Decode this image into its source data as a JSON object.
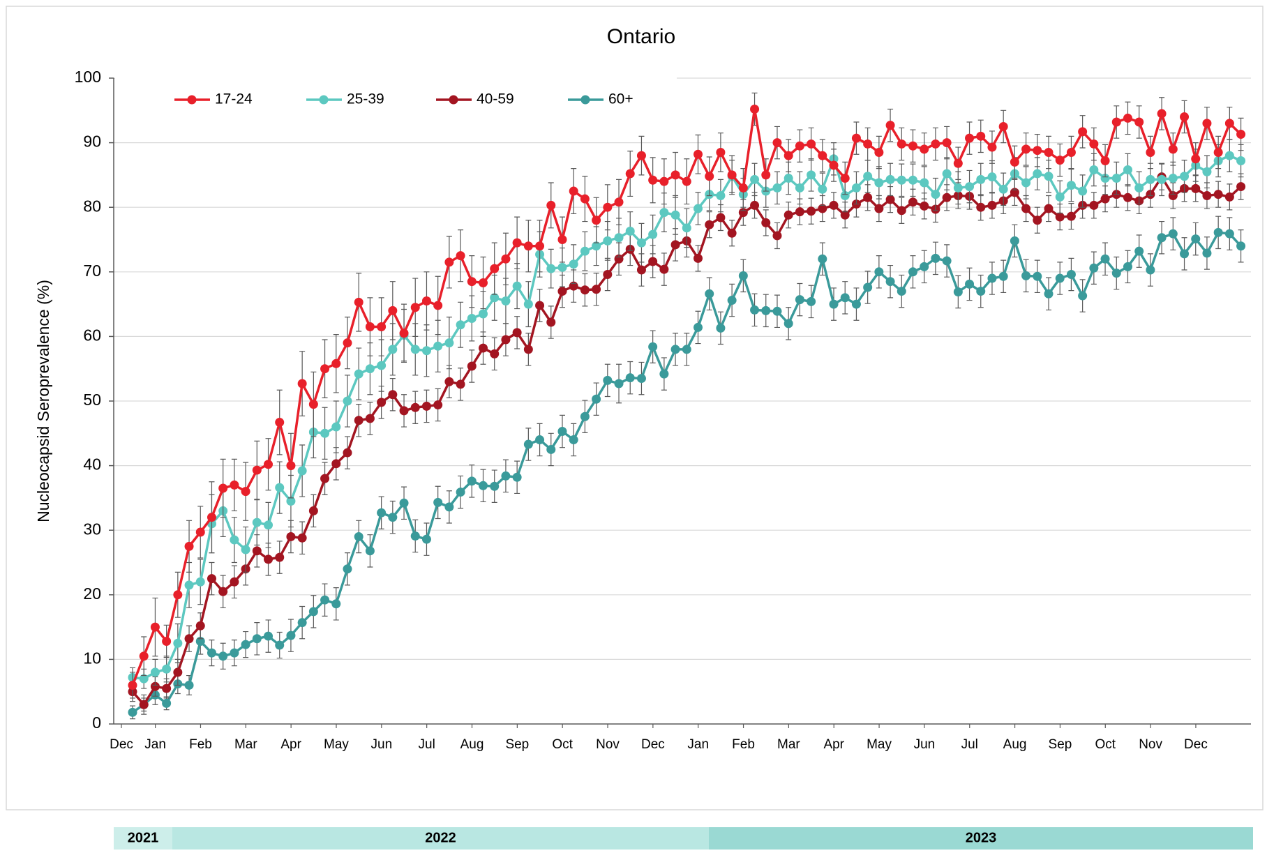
{
  "chart_data": {
    "type": "line",
    "title": "Ontario",
    "ylabel": "Nucleocapsid Seroprevalence (%)",
    "ylim": [
      0,
      100
    ],
    "yticks": [
      0,
      10,
      20,
      30,
      40,
      50,
      60,
      70,
      80,
      90,
      100
    ],
    "grid": true,
    "legend": "top-left",
    "year_bands": [
      "2021",
      "2022",
      "2023"
    ],
    "categories": [
      "Dec",
      null,
      null,
      "Jan",
      null,
      null,
      null,
      "Feb",
      null,
      null,
      null,
      "Mar",
      null,
      null,
      null,
      "Apr",
      null,
      null,
      null,
      "May",
      null,
      null,
      null,
      "Jun",
      null,
      null,
      null,
      "Jul",
      null,
      null,
      null,
      "Aug",
      null,
      null,
      null,
      "Sep",
      null,
      null,
      null,
      "Oct",
      null,
      null,
      null,
      "Nov",
      null,
      null,
      null,
      "Dec",
      null,
      null,
      null,
      "Jan",
      null,
      null,
      null,
      "Feb",
      null,
      null,
      null,
      "Mar",
      null,
      null,
      null,
      "Apr",
      null,
      null,
      null,
      "May",
      null,
      null,
      null,
      "Jun",
      null,
      null,
      null,
      "Jul",
      null,
      null,
      null,
      "Aug",
      null,
      null,
      null,
      "Sep",
      null,
      null,
      null,
      "Oct",
      null,
      null,
      null,
      "Nov",
      null,
      null,
      null,
      "Dec",
      null,
      null,
      null
    ],
    "series": [
      {
        "name": "17-24",
        "color": "#e8202a",
        "values": [
          6,
          10.5,
          15,
          12.8,
          20,
          27.5,
          29.7,
          32,
          36.5,
          37,
          36,
          39.3,
          40.2,
          46.7,
          40,
          52.7,
          49.5,
          55,
          55.8,
          59,
          65.3,
          61.5,
          61.5,
          64,
          60.5,
          64.5,
          65.5,
          64.8,
          71.5,
          72.5,
          68.5,
          68.3,
          70.5,
          72,
          74.5,
          74,
          74,
          80.3,
          75,
          82.5,
          81.3,
          78,
          80,
          80.8,
          85.2,
          88,
          84.2,
          84,
          85,
          84,
          88.2,
          84.8,
          88.5,
          85,
          83,
          95.2,
          85,
          90,
          88,
          89.5,
          89.8,
          88,
          86.5,
          84.5,
          90.7,
          89.8,
          88.5,
          92.7,
          89.8,
          89.5,
          89,
          89.8,
          90,
          86.8,
          90.7,
          91,
          89.3,
          92.5,
          87,
          89,
          88.8,
          88.5,
          87.3,
          88.5,
          91.7,
          89.8,
          87.2,
          93.2,
          93.8,
          93.2,
          88.5,
          94.5,
          89,
          94,
          87.5,
          93,
          88.5,
          93,
          91.3
        ],
        "errors": [
          2,
          3,
          4.5,
          2.5,
          3.5,
          4,
          4,
          5.5,
          4.5,
          4,
          4.5,
          4.5,
          4,
          5,
          5,
          5,
          5,
          4.5,
          4.5,
          4,
          4.5,
          4.5,
          4.5,
          4.5,
          4.5,
          4.5,
          4.5,
          4.5,
          4,
          4,
          4,
          4,
          4,
          4,
          4,
          4,
          4,
          3.5,
          3.5,
          3.5,
          3.5,
          3.5,
          3.5,
          3.5,
          3.5,
          3,
          3.5,
          3.5,
          3.5,
          3.5,
          3,
          3,
          3,
          3,
          3,
          2.5,
          2.5,
          2.5,
          2.5,
          2.5,
          2.5,
          2.5,
          2.5,
          2.5,
          2.5,
          2.5,
          2.5,
          2.5,
          2.5,
          2.5,
          2.5,
          2.5,
          2.5,
          2.5,
          2.5,
          2.5,
          2.5,
          2.5,
          2.5,
          2.5,
          2.5,
          2.5,
          2.5,
          2.5,
          2.5,
          2.5,
          2.5,
          2.5,
          2.5,
          2.5,
          2.5,
          2.5,
          2.5,
          2.5,
          2.5,
          2.5,
          2.5,
          2.5,
          2.5
        ]
      },
      {
        "name": "25-39",
        "color": "#5cc8c0",
        "values": [
          7.2,
          7,
          8,
          8.5,
          12.5,
          21.5,
          22,
          31,
          33,
          28.5,
          27,
          31.2,
          30.8,
          36.6,
          34.5,
          39.2,
          45.2,
          45,
          46,
          50,
          54.2,
          55,
          55.5,
          58,
          60.2,
          58,
          57.8,
          58.5,
          59,
          61.8,
          62.8,
          63.5,
          66,
          65.5,
          67.8,
          65,
          72.7,
          70.5,
          70.7,
          71.2,
          73.2,
          74,
          74.8,
          75.3,
          76.3,
          74.5,
          75.8,
          79.2,
          78.8,
          76.8,
          79.8,
          82,
          81.8,
          84.8,
          82,
          84.3,
          82.5,
          83,
          84.5,
          83,
          85,
          82.8,
          87.5,
          81.8,
          83,
          84.8,
          83.8,
          84.3,
          84.2,
          84.2,
          83.8,
          82,
          85.2,
          83,
          83.2,
          84.3,
          84.7,
          82.8,
          85.2,
          83.8,
          85.2,
          84.8,
          81.6,
          83.4,
          82.5,
          85.8,
          84.5,
          84.5,
          85.8,
          83,
          84.3,
          84.3,
          84.5,
          84.8,
          86.5,
          85.5,
          87.2,
          88,
          87.2
        ],
        "errors": [
          1.5,
          1.5,
          2,
          2,
          3,
          3.5,
          3.5,
          4.5,
          4,
          3.5,
          3.5,
          3.5,
          3.5,
          4,
          4,
          4,
          4,
          4,
          4,
          4,
          4,
          4,
          4,
          4,
          4,
          4,
          4,
          4,
          4,
          3.5,
          3.5,
          3.5,
          3.5,
          3.5,
          3.5,
          3.5,
          3.5,
          3,
          3,
          3,
          3,
          3,
          3,
          3,
          3,
          3,
          3,
          3,
          3,
          3,
          2.5,
          2.5,
          2.5,
          2.5,
          2.5,
          2.5,
          2.5,
          2.5,
          2.5,
          2.5,
          2.5,
          2.5,
          2.5,
          2.5,
          2.5,
          2.5,
          2.5,
          2.5,
          2.5,
          2.5,
          2.5,
          2.5,
          2.5,
          2.5,
          2.5,
          2.5,
          2.5,
          2.5,
          2.5,
          2.5,
          2.5,
          2.5,
          2.5,
          2.5,
          2.5,
          2.5,
          2.5,
          2.5,
          2.5,
          2.5,
          2.5,
          2.5,
          2.5,
          2.5,
          2.5,
          2.5,
          2.5,
          2.5,
          2.5
        ]
      },
      {
        "name": "40-59",
        "color": "#a31521",
        "values": [
          5,
          3,
          5.8,
          5.5,
          8,
          13.2,
          15.2,
          22.5,
          20.5,
          22,
          24,
          26.8,
          25.5,
          25.8,
          29,
          28.8,
          33,
          38,
          40.3,
          42,
          47,
          47.3,
          49.8,
          51,
          48.5,
          49,
          49.2,
          49.4,
          53,
          52.6,
          55.4,
          58.2,
          57.3,
          59.5,
          60.6,
          58,
          64.8,
          62.2,
          67,
          67.8,
          67.2,
          67.3,
          69.6,
          72,
          73.5,
          70.3,
          71.6,
          70.4,
          74.2,
          74.8,
          72.1,
          77.3,
          78.4,
          76,
          79.2,
          80.3,
          77.6,
          75.6,
          78.8,
          79.3,
          79.4,
          79.8,
          80.3,
          78.8,
          80.5,
          81.5,
          79.8,
          81.2,
          79.5,
          80.8,
          80.2,
          79.7,
          81.5,
          81.8,
          81.7,
          80,
          80.3,
          81,
          82.3,
          79.8,
          78,
          79.8,
          78.5,
          78.6,
          80.3,
          80.3,
          81.3,
          82,
          81.5,
          81,
          82,
          84.7,
          81.8,
          82.9,
          82.9,
          81.8,
          82,
          81.6,
          83.2
        ],
        "errors": [
          1.5,
          1.5,
          1.5,
          1.5,
          2,
          2,
          2,
          2.5,
          2.5,
          2.5,
          2.5,
          2.5,
          2.5,
          2.5,
          2.5,
          2.5,
          2.5,
          2.5,
          2.5,
          2.5,
          2.5,
          2.5,
          2.5,
          2.5,
          2.5,
          2.5,
          2.5,
          2.5,
          2.5,
          2.5,
          2.5,
          2.5,
          2.5,
          2.5,
          2.5,
          2.5,
          2.5,
          2.5,
          2.5,
          2.5,
          2.5,
          2.5,
          2.5,
          2.5,
          2.5,
          2.5,
          2.5,
          2.5,
          2.5,
          2.5,
          2,
          2,
          2,
          2,
          2,
          2,
          2,
          2,
          2,
          2,
          2,
          2,
          2,
          2,
          2,
          2,
          2,
          2,
          2,
          2,
          2,
          2,
          2,
          2,
          2,
          2,
          2,
          2,
          2,
          2,
          2,
          2,
          2,
          2,
          2,
          2,
          2,
          2,
          2,
          2,
          2,
          2,
          2,
          2,
          2,
          2,
          2,
          2,
          2
        ]
      },
      {
        "name": "60+",
        "color": "#3a9a9a",
        "values": [
          1.8,
          3,
          4.5,
          3.2,
          6.2,
          6,
          12.8,
          11,
          10.5,
          11,
          12.3,
          13.2,
          13.6,
          12.2,
          13.7,
          15.7,
          17.4,
          19.2,
          18.6,
          24,
          29,
          26.8,
          32.7,
          32,
          34.2,
          29.1,
          28.6,
          34.3,
          33.6,
          35.9,
          37.6,
          36.9,
          36.8,
          38.4,
          38.2,
          43.3,
          44,
          42.5,
          45.3,
          44,
          47.6,
          50.3,
          53.2,
          52.7,
          53.6,
          53.5,
          58.4,
          54.2,
          58,
          58,
          61.4,
          66.6,
          61.3,
          65.6,
          69.4,
          64.1,
          64,
          63.9,
          62,
          65.7,
          65.4,
          72,
          65,
          66,
          65,
          67.6,
          70,
          68.5,
          67,
          70,
          70.8,
          72.1,
          71.7,
          66.9,
          68.1,
          67,
          69,
          69.3,
          74.8,
          69.4,
          69.3,
          66.6,
          69,
          69.6,
          66.3,
          70.6,
          72,
          69.8,
          70.8,
          73.2,
          70.3,
          75.3,
          75.9,
          72.8,
          75.1,
          72.9,
          76.1,
          75.9,
          74
        ],
        "errors": [
          1,
          1,
          1.5,
          1,
          1.5,
          1.5,
          2,
          2,
          2,
          2,
          2,
          2.5,
          2.5,
          2,
          2.5,
          2.5,
          2.5,
          2.5,
          2.5,
          2.5,
          2.5,
          2.5,
          2.5,
          2.5,
          2.5,
          2.5,
          2.5,
          2.5,
          2.5,
          2.5,
          2.5,
          2.5,
          2.5,
          2.5,
          2.5,
          2.5,
          2.5,
          2.5,
          2.5,
          2.5,
          2.5,
          2.5,
          2.5,
          3,
          2.5,
          2.5,
          2.5,
          2.5,
          2.5,
          2.5,
          2.5,
          2.5,
          2.5,
          2.5,
          2.5,
          2.5,
          2.5,
          2.5,
          2.5,
          2.5,
          2.5,
          2.5,
          2.5,
          2.5,
          2.5,
          2.5,
          2.5,
          2.5,
          2.5,
          2.5,
          2.5,
          2.5,
          2.5,
          2.5,
          2.5,
          2.5,
          2.5,
          2.5,
          2.5,
          2.5,
          2.5,
          2.5,
          2.5,
          2.5,
          2.5,
          2.5,
          2.5,
          2.5,
          2.5,
          2.5,
          2.5,
          2.5,
          2.5,
          2.5,
          2.5,
          2.5,
          2.5,
          2.5,
          2.5
        ]
      }
    ]
  }
}
